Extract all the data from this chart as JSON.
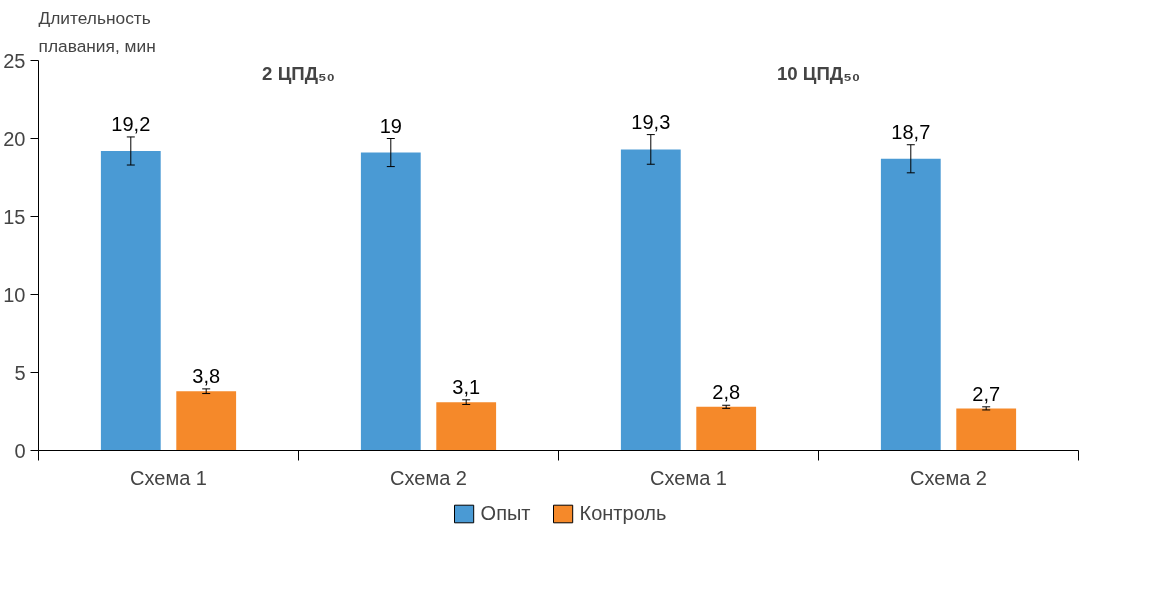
{
  "chart_data": {
    "type": "bar",
    "ylabel": "Длительность плавания, мин",
    "categories": [
      "Схема 1",
      "Схема 2",
      "Схема 1",
      "Схема 2"
    ],
    "series": [
      {
        "name": "Опыт",
        "color": "#4a9ad4",
        "values": [
          19.2,
          19.1,
          19.3,
          18.7
        ],
        "errors": [
          0.9,
          0.9,
          0.95,
          0.9
        ],
        "value_labels": [
          "19,2",
          "19",
          "19,3",
          "18,7"
        ]
      },
      {
        "name": "Контроль",
        "color": "#f5892a",
        "values": [
          3.8,
          3.1,
          2.8,
          2.7
        ],
        "errors": [
          0.15,
          0.15,
          0.1,
          0.1
        ],
        "value_labels": [
          "3,8",
          "3,1",
          "2,8",
          "2,7"
        ]
      }
    ],
    "annotations": [
      "2 ЦПД₅₀",
      "10 ЦПД₅₀"
    ],
    "ylim": [
      0,
      25
    ],
    "yticks": [
      0,
      5,
      10,
      15,
      20,
      25
    ],
    "grid": false,
    "legend": "bottom"
  }
}
